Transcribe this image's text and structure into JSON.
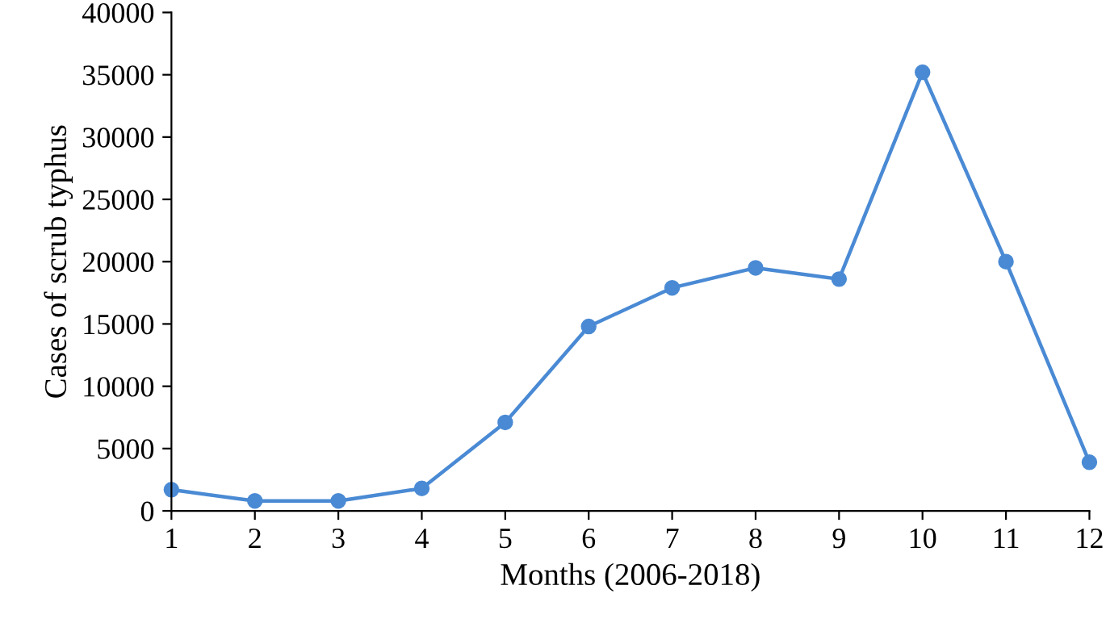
{
  "chart_data": {
    "type": "line",
    "xlabel": "Months (2006-2018)",
    "ylabel": "Cases of scrub typhus",
    "x": [
      1,
      2,
      3,
      4,
      5,
      6,
      7,
      8,
      9,
      10,
      11,
      12
    ],
    "series": [
      {
        "color": "#4a8ad4",
        "values": [
          1700,
          800,
          800,
          1800,
          7100,
          14800,
          17900,
          19500,
          18600,
          35200,
          20000,
          3900
        ]
      }
    ],
    "xlim": [
      1,
      12
    ],
    "xticks": [
      1,
      2,
      3,
      4,
      5,
      6,
      7,
      8,
      9,
      10,
      11,
      12
    ],
    "ylim": [
      0,
      40000
    ],
    "yticks": [
      0,
      5000,
      10000,
      15000,
      20000,
      25000,
      30000,
      35000,
      40000
    ],
    "marker": "circle",
    "line_style": "solid",
    "grid": false,
    "legend": false
  }
}
